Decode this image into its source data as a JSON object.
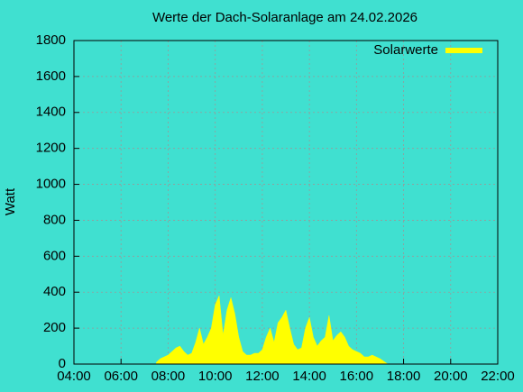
{
  "chart_data": {
    "type": "area",
    "title": "Werte der Dach-Solaranlage am 24.02.2026",
    "y_label": "Watt",
    "x": [
      "07:30",
      "07:40",
      "07:50",
      "08:00",
      "08:10",
      "08:20",
      "08:30",
      "08:40",
      "08:50",
      "09:00",
      "09:10",
      "09:20",
      "09:30",
      "09:40",
      "09:50",
      "10:00",
      "10:10",
      "10:20",
      "10:30",
      "10:40",
      "10:50",
      "11:00",
      "11:10",
      "11:20",
      "11:30",
      "11:40",
      "11:50",
      "12:00",
      "12:10",
      "12:20",
      "12:30",
      "12:40",
      "12:50",
      "13:00",
      "13:10",
      "13:20",
      "13:30",
      "13:40",
      "13:50",
      "14:00",
      "14:10",
      "14:20",
      "14:30",
      "14:40",
      "14:50",
      "15:00",
      "15:10",
      "15:20",
      "15:30",
      "15:40",
      "15:50",
      "16:00",
      "16:10",
      "16:20",
      "16:30",
      "16:40",
      "16:50",
      "17:00",
      "17:10",
      "17:20"
    ],
    "series": [
      {
        "name": "Solarwerte",
        "color": "#ffff00",
        "values": [
          10,
          30,
          40,
          50,
          70,
          90,
          100,
          70,
          50,
          60,
          120,
          200,
          110,
          150,
          200,
          330,
          380,
          160,
          300,
          370,
          280,
          150,
          70,
          50,
          50,
          60,
          60,
          80,
          150,
          200,
          120,
          230,
          260,
          300,
          200,
          110,
          80,
          90,
          200,
          260,
          150,
          100,
          130,
          150,
          270,
          130,
          160,
          180,
          150,
          100,
          80,
          70,
          60,
          40,
          40,
          50,
          40,
          30,
          15,
          0
        ]
      }
    ],
    "xlim": [
      "04:00",
      "22:00"
    ],
    "xticks": [
      "04:00",
      "06:00",
      "08:00",
      "10:00",
      "12:00",
      "14:00",
      "16:00",
      "18:00",
      "20:00",
      "22:00"
    ],
    "ylim": [
      0,
      1800
    ],
    "yticks": [
      0,
      200,
      400,
      600,
      800,
      1000,
      1200,
      1400,
      1600,
      1800
    ],
    "grid": true,
    "legend": "top-right"
  }
}
